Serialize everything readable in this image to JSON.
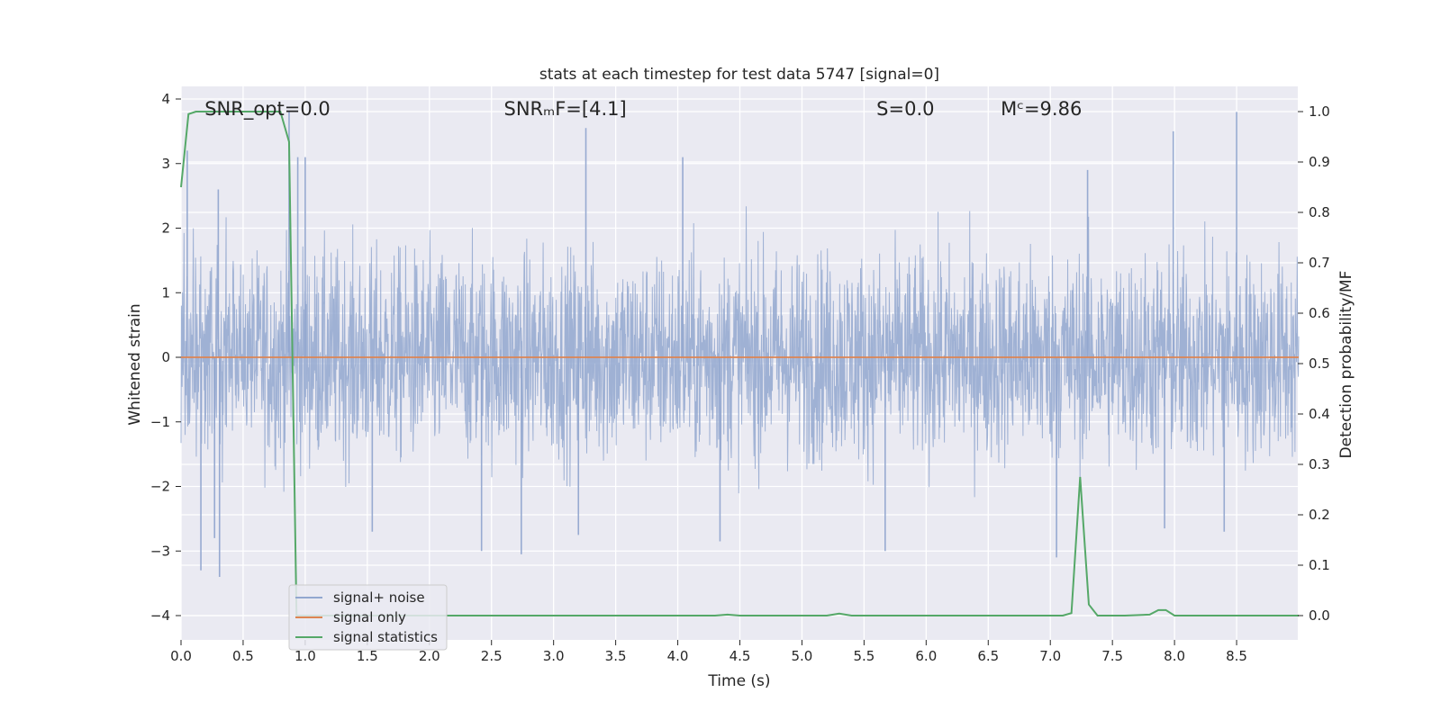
{
  "chart_data": {
    "type": "line",
    "title": "stats at each timestep for test data 5747 [signal=0]",
    "xlabel": "Time (s)",
    "ylabel_left": "Whitened strain",
    "ylabel_right": "Detection probability/MF",
    "xlim": [
      0.0,
      9.0
    ],
    "ylim_left": [
      -4.4,
      4.2
    ],
    "ylim_right": [
      -0.048,
      1.035
    ],
    "x_ticks": [
      0.0,
      0.5,
      1.0,
      1.5,
      2.0,
      2.5,
      3.0,
      3.5,
      4.0,
      4.5,
      5.0,
      5.5,
      6.0,
      6.5,
      7.0,
      7.5,
      8.0,
      8.5
    ],
    "x_tick_labels": [
      "0.0",
      "0.5",
      "1.0",
      "1.5",
      "2.0",
      "2.5",
      "3.0",
      "3.5",
      "4.0",
      "4.5",
      "5.0",
      "5.5",
      "6.0",
      "6.5",
      "7.0",
      "7.5",
      "8.0",
      "8.5"
    ],
    "y_ticks_left": [
      4,
      3,
      2,
      1,
      0,
      -1,
      -2,
      -3,
      -4
    ],
    "y_tick_labels_left": [
      "4",
      "3",
      "2",
      "1",
      "0",
      "−1",
      "−2",
      "−3",
      "−4"
    ],
    "y_ticks_right": [
      1.0,
      0.9,
      0.8,
      0.7,
      0.6,
      0.5,
      0.4,
      0.3,
      0.2,
      0.1,
      0.0
    ],
    "y_tick_labels_right": [
      "1.0",
      "0.9",
      "0.8",
      "0.7",
      "0.6",
      "0.5",
      "0.4",
      "0.3",
      "0.2",
      "0.1",
      "0.0"
    ],
    "grid": true,
    "legend_placement": "lower-left",
    "annotations": [
      {
        "text": "SNR_opt=0.0",
        "x": 0.19,
        "y": 3.85
      },
      {
        "text": "SNRₘF=[4.1]",
        "x": 2.6,
        "y": 3.85
      },
      {
        "text": "S=0.0",
        "x": 5.6,
        "y": 3.85
      },
      {
        "text": "Mᶜ=9.86",
        "x": 6.6,
        "y": 3.85
      }
    ],
    "series": [
      {
        "name": "signal+ noise",
        "axis": "left",
        "color": "#92a7cf",
        "kind": "noise",
        "amplitude_envelope": 1.45,
        "peaks_positive": [
          {
            "x": 0.05,
            "y": 3.2
          },
          {
            "x": 0.3,
            "y": 2.6
          },
          {
            "x": 0.87,
            "y": 3.8
          },
          {
            "x": 0.94,
            "y": 3.1
          },
          {
            "x": 1.0,
            "y": 3.1
          },
          {
            "x": 3.26,
            "y": 3.55
          },
          {
            "x": 4.04,
            "y": 3.1
          },
          {
            "x": 7.3,
            "y": 2.9
          },
          {
            "x": 7.99,
            "y": 3.5
          },
          {
            "x": 8.5,
            "y": 3.8
          }
        ],
        "peaks_negative": [
          {
            "x": 0.16,
            "y": -3.3
          },
          {
            "x": 0.31,
            "y": -3.4
          },
          {
            "x": 0.27,
            "y": -2.8
          },
          {
            "x": 1.54,
            "y": -2.7
          },
          {
            "x": 2.42,
            "y": -3.0
          },
          {
            "x": 2.74,
            "y": -3.05
          },
          {
            "x": 3.2,
            "y": -2.75
          },
          {
            "x": 4.34,
            "y": -2.85
          },
          {
            "x": 5.67,
            "y": -3.0
          },
          {
            "x": 7.05,
            "y": -3.1
          },
          {
            "x": 7.92,
            "y": -2.65
          },
          {
            "x": 8.4,
            "y": -2.7
          }
        ]
      },
      {
        "name": "signal only",
        "axis": "left",
        "color": "#dd8452",
        "x": [
          0.0,
          9.0
        ],
        "y": [
          0.0,
          0.0
        ]
      },
      {
        "name": "signal statistics",
        "axis": "right",
        "color": "#55a868",
        "x": [
          0.0,
          0.06,
          0.12,
          0.8,
          0.87,
          0.93,
          0.99,
          4.3,
          4.4,
          4.5,
          5.2,
          5.3,
          5.4,
          7.1,
          7.17,
          7.24,
          7.31,
          7.38,
          7.6,
          7.8,
          7.87,
          7.93,
          8.0,
          8.1,
          9.0
        ],
        "y": [
          0.85,
          0.995,
          1.0,
          1.0,
          0.94,
          0.0,
          0.0,
          0.0,
          0.002,
          0.0,
          0.0,
          0.004,
          0.0,
          0.0,
          0.005,
          0.275,
          0.022,
          0.0,
          0.0,
          0.002,
          0.011,
          0.011,
          0.0,
          0.0,
          0.0
        ]
      }
    ]
  }
}
